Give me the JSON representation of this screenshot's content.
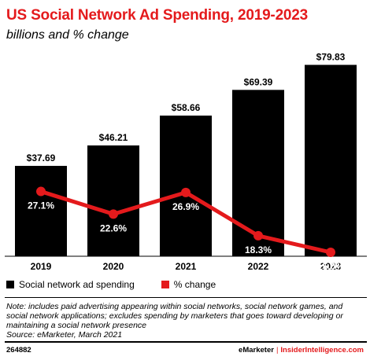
{
  "chart_data": {
    "type": "bar",
    "title": "US Social Network Ad Spending, 2019-2023",
    "subtitle": "billions and % change",
    "categories": [
      "2019",
      "2020",
      "2021",
      "2022",
      "2023"
    ],
    "series": [
      {
        "name": "Social network ad spending",
        "type": "bar",
        "color": "#000000",
        "values": [
          37.69,
          46.21,
          58.66,
          69.39,
          79.83
        ],
        "labels": [
          "$37.69",
          "$46.21",
          "$58.66",
          "$69.39",
          "$79.83"
        ]
      },
      {
        "name": "% change",
        "type": "line",
        "color": "#e41a1c",
        "values": [
          27.1,
          22.6,
          26.9,
          18.3,
          15.0
        ],
        "labels": [
          "27.1%",
          "22.6%",
          "26.9%",
          "18.3%",
          "15.0%"
        ]
      }
    ],
    "xlabel": "",
    "ylabel": "",
    "ylim": [
      0,
      85
    ],
    "legend_position": "bottom-left",
    "grid": false
  },
  "footer": {
    "note": "Note: includes paid advertising appearing within social networks, social network games, and social network applications; excludes spending by marketers that goes toward developing or maintaining a social network presence",
    "source": "Source: eMarketer, March 2021",
    "chart_id": "264882",
    "brand_left": "eMarketer",
    "brand_separator": "|",
    "brand_right": "InsiderIntelligence.com"
  }
}
